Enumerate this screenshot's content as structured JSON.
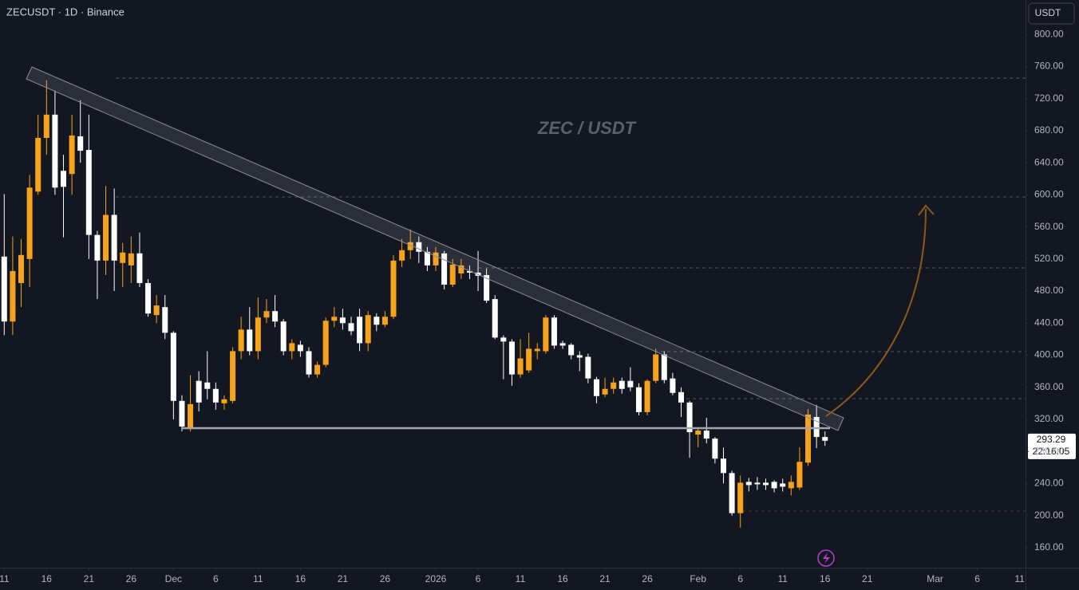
{
  "chart_data": {
    "type": "candlestick",
    "title": "ZECUSDT · 1D · Binance",
    "watermark": "ZEC / USDT",
    "currency": "USDT",
    "last_price": 293.29,
    "countdown": "22:16:05",
    "up_color": "#f7a21b",
    "down_color": "#ffffff",
    "ylim": [
      135,
      843
    ],
    "yticks": [
      {
        "value": 800,
        "label": "800.00"
      },
      {
        "value": 760,
        "label": "760.00"
      },
      {
        "value": 720,
        "label": "720.00"
      },
      {
        "value": 680,
        "label": "680.00"
      },
      {
        "value": 640,
        "label": "640.00"
      },
      {
        "value": 600,
        "label": "600.00"
      },
      {
        "value": 560,
        "label": "560.00"
      },
      {
        "value": 520,
        "label": "520.00"
      },
      {
        "value": 480,
        "label": "480.00"
      },
      {
        "value": 440,
        "label": "440.00"
      },
      {
        "value": 400,
        "label": "400.00"
      },
      {
        "value": 360,
        "label": "360.00"
      },
      {
        "value": 320,
        "label": "320.00"
      },
      {
        "value": 280,
        "label": "280.00"
      },
      {
        "value": 240,
        "label": "240.00"
      },
      {
        "value": 200,
        "label": "200.00"
      },
      {
        "value": 160,
        "label": "160.00"
      }
    ],
    "xlim": [
      -0.5,
      120.7
    ],
    "xticks": [
      {
        "value": 0,
        "label": "11"
      },
      {
        "value": 5,
        "label": "16"
      },
      {
        "value": 10,
        "label": "21"
      },
      {
        "value": 15,
        "label": "26"
      },
      {
        "value": 20,
        "label": "Dec"
      },
      {
        "value": 25,
        "label": "6"
      },
      {
        "value": 30,
        "label": "11"
      },
      {
        "value": 35,
        "label": "16"
      },
      {
        "value": 40,
        "label": "21"
      },
      {
        "value": 45,
        "label": "26"
      },
      {
        "value": 51,
        "label": "2026"
      },
      {
        "value": 56,
        "label": "6"
      },
      {
        "value": 61,
        "label": "11"
      },
      {
        "value": 66,
        "label": "16"
      },
      {
        "value": 71,
        "label": "21"
      },
      {
        "value": 76,
        "label": "26"
      },
      {
        "value": 82,
        "label": "Feb"
      },
      {
        "value": 87,
        "label": "6"
      },
      {
        "value": 92,
        "label": "11"
      },
      {
        "value": 97,
        "label": "16"
      },
      {
        "value": 102,
        "label": "21"
      },
      {
        "value": 110,
        "label": "Mar"
      },
      {
        "value": 115,
        "label": "6"
      },
      {
        "value": 120,
        "label": "11"
      }
    ],
    "open": [
      523,
      442,
      490,
      520,
      604,
      671,
      700,
      630,
      626,
      673,
      656,
      550,
      518,
      575,
      515,
      512,
      527,
      490,
      450,
      460,
      428,
      343,
      309,
      368,
      366,
      358,
      340,
      343,
      405,
      432,
      405,
      447,
      455,
      442,
      405,
      413,
      405,
      376,
      388,
      443,
      447,
      440,
      448,
      415,
      448,
      438,
      448,
      518,
      531,
      541,
      529,
      512,
      527,
      488,
      502,
      505,
      503,
      500,
      470,
      422,
      417,
      376,
      381,
      405,
      405,
      447,
      415,
      413,
      400,
      398,
      370,
      351,
      358,
      368,
      368,
      360,
      329,
      368,
      401,
      371,
      354,
      341,
      301,
      306,
      296,
      271,
      253,
      203,
      242,
      241,
      241,
      242,
      240,
      234,
      235,
      266,
      323,
      298
    ],
    "high": [
      601,
      548,
      545,
      625,
      700,
      743,
      730,
      650,
      700,
      718,
      700,
      555,
      611,
      608,
      540,
      548,
      553,
      495,
      475,
      475,
      430,
      350,
      375,
      380,
      405,
      366,
      350,
      410,
      448,
      460,
      472,
      470,
      475,
      445,
      420,
      418,
      410,
      392,
      447,
      460,
      458,
      448,
      458,
      455,
      452,
      455,
      525,
      545,
      557,
      548,
      535,
      535,
      530,
      520,
      520,
      512,
      530,
      508,
      475,
      425,
      420,
      420,
      428,
      415,
      450,
      450,
      418,
      415,
      405,
      402,
      373,
      372,
      372,
      372,
      385,
      365,
      370,
      408,
      405,
      378,
      360,
      343,
      310,
      322,
      298,
      285,
      256,
      250,
      247,
      248,
      246,
      244,
      246,
      250,
      285,
      333,
      338,
      305
    ],
    "low": [
      425,
      425,
      460,
      485,
      600,
      650,
      600,
      547,
      600,
      640,
      520,
      470,
      500,
      480,
      485,
      490,
      485,
      448,
      440,
      420,
      320,
      305,
      305,
      330,
      345,
      332,
      332,
      340,
      395,
      400,
      395,
      440,
      435,
      400,
      395,
      398,
      372,
      372,
      385,
      435,
      432,
      425,
      405,
      405,
      430,
      435,
      445,
      510,
      520,
      515,
      505,
      505,
      482,
      485,
      495,
      495,
      480,
      465,
      420,
      370,
      362,
      372,
      378,
      395,
      402,
      408,
      408,
      395,
      380,
      365,
      340,
      348,
      352,
      352,
      355,
      325,
      325,
      365,
      365,
      350,
      323,
      272,
      285,
      290,
      265,
      240,
      200,
      185,
      230,
      232,
      232,
      229,
      230,
      225,
      232,
      262,
      284,
      287
    ],
    "close": [
      442,
      505,
      525,
      609,
      671,
      700,
      609,
      610,
      674,
      655,
      550,
      518,
      575,
      518,
      528,
      527,
      490,
      452,
      462,
      428,
      343,
      311,
      339,
      341,
      358,
      341,
      345,
      405,
      432,
      405,
      447,
      455,
      442,
      405,
      415,
      405,
      376,
      388,
      443,
      448,
      440,
      430,
      415,
      450,
      438,
      448,
      518,
      531,
      541,
      529,
      512,
      528,
      488,
      513,
      512,
      503,
      499,
      468,
      422,
      417,
      376,
      396,
      408,
      408,
      447,
      412,
      412,
      400,
      397,
      371,
      349,
      358,
      366,
      358,
      360,
      329,
      368,
      401,
      369,
      353,
      341,
      304,
      306,
      296,
      271,
      253,
      203,
      241,
      238,
      239,
      238,
      234,
      236,
      242,
      267,
      326,
      298,
      293.29
    ]
  }
}
